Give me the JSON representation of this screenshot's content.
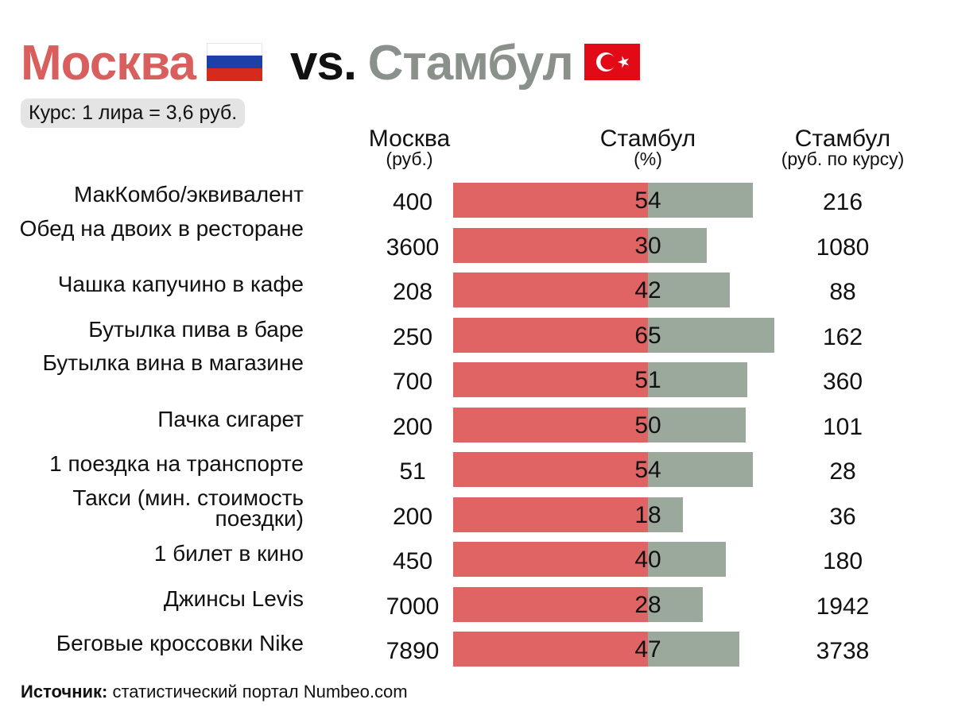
{
  "header": {
    "city_a": "Москва",
    "vs": "vs.",
    "city_b": "Стамбул",
    "rate": "Курс: 1 лира = 3,6 руб."
  },
  "columns": {
    "moscow": {
      "title": "Москва",
      "unit": "(руб.)"
    },
    "istanbul_pct": {
      "title": "Стамбул",
      "unit": "(%)"
    },
    "istanbul_rub": {
      "title": "Стамбул",
      "unit": "(руб. по курсу)"
    }
  },
  "colors": {
    "moscow": "#e06464",
    "istanbul": "#9aa99c",
    "title_moscow": "#d95f5f",
    "title_istanbul": "#8a918b"
  },
  "source": {
    "label": "Источник:",
    "text": " статистический портал Numbeo.com"
  },
  "chart_data": {
    "type": "bar",
    "categories": [
      "МакКомбо/эквивалент",
      "Обед на двоих в ресторане",
      "Чашка капучино в кафе",
      "Бутылка пива в баре",
      "Бутылка вина в магазине",
      "Пачка сигарет",
      "1 поездка на транспорте",
      "Такси (мин. стоимость поездки)",
      "1 билет в кино",
      "Джинсы Levis",
      "Беговые кроссовки Nike"
    ],
    "moscow_rub": [
      "400",
      "3600",
      "208",
      "250",
      "700",
      "200",
      "51",
      "200",
      "450",
      "7000",
      "7890"
    ],
    "istanbul_pct": [
      "54",
      "30",
      "42",
      "65",
      "51",
      "50",
      "54",
      "18",
      "40",
      "28",
      "47"
    ],
    "istanbul_rub": [
      "216",
      "1080",
      "88",
      "162",
      "360",
      "101",
      "28",
      "36",
      "180",
      "1942",
      "3738"
    ]
  }
}
